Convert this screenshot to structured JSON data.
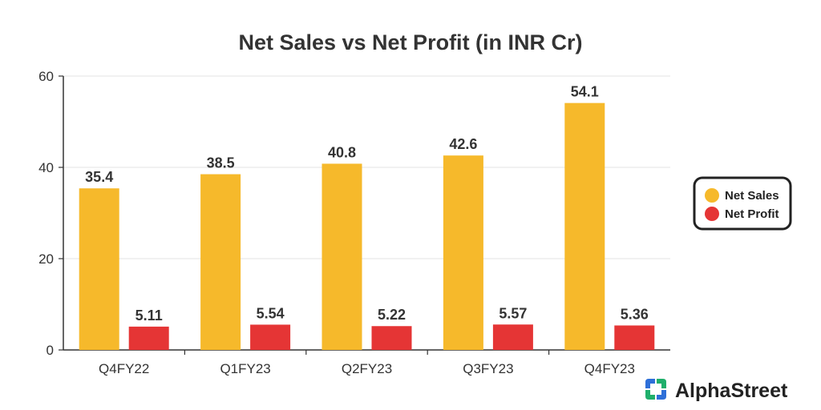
{
  "chart_data": {
    "type": "bar",
    "title": "Net Sales vs Net Profit (in INR Cr)",
    "xlabel": "",
    "ylabel": "",
    "categories": [
      "Q4FY22",
      "Q1FY23",
      "Q2FY23",
      "Q3FY23",
      "Q4FY23"
    ],
    "series": [
      {
        "name": "Net Sales",
        "values": [
          35.4,
          38.5,
          40.8,
          42.6,
          54.1
        ],
        "labels": [
          "35.4",
          "38.5",
          "40.8",
          "42.6",
          "54.1"
        ],
        "color": "#F6B92B"
      },
      {
        "name": "Net Profit",
        "values": [
          5.11,
          5.54,
          5.22,
          5.57,
          5.36
        ],
        "labels": [
          "5.11",
          "5.54",
          "5.22",
          "5.57",
          "5.36"
        ],
        "color": "#E53535"
      }
    ],
    "ylim": [
      0,
      60
    ],
    "yticks": [
      "0",
      "20",
      "40",
      "60"
    ],
    "grid": true,
    "legend": "right"
  },
  "brand": {
    "name": "AlphaStreet",
    "colors": [
      "#2E6FD8",
      "#1FAF6B"
    ]
  }
}
